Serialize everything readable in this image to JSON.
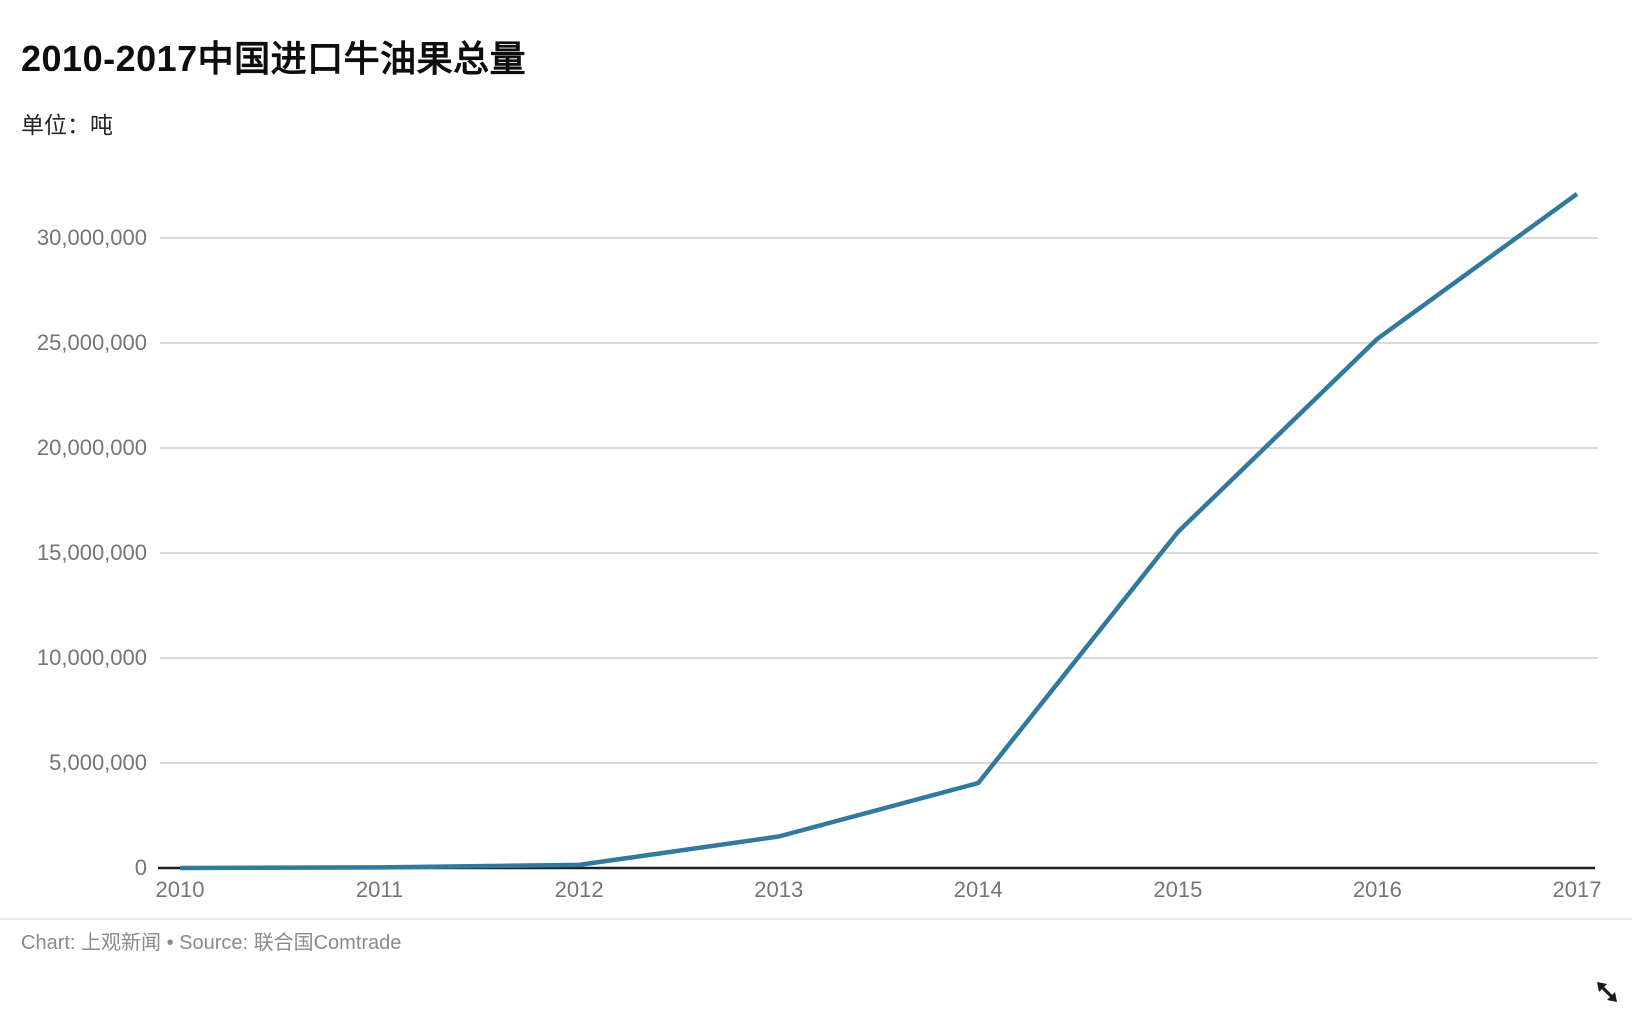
{
  "header": {
    "title": "2010-2017中国进口牛油果总量",
    "subtitle": "单位：吨"
  },
  "footer": {
    "text": "Chart: 上观新闻 • Source: 联合国Comtrade"
  },
  "colors": {
    "line": "#32799f",
    "grid": "#dadada",
    "axis": "#1f1f1f",
    "tick_text": "#757575",
    "footer_text": "#8a8a8a",
    "divider": "#e9e9e9",
    "cursor": "#1a1a1a"
  },
  "chart_data": {
    "type": "line",
    "title": "2010-2017中国进口牛油果总量",
    "unit_label": "单位：吨",
    "source_label": "Chart: 上观新闻 • Source: 联合国Comtrade",
    "categories": [
      2010,
      2011,
      2012,
      2013,
      2014,
      2015,
      2016,
      2017
    ],
    "series": [
      {
        "name": "中国进口牛油果总量",
        "values": [
          0,
          30000,
          150000,
          1500000,
          4050000,
          16000000,
          25200000,
          32100000
        ]
      }
    ],
    "yticks": [
      0,
      5000000,
      10000000,
      15000000,
      20000000,
      25000000,
      30000000
    ],
    "ylim": [
      0,
      32500000
    ],
    "xlabel": "",
    "ylabel": "",
    "grid": "horizontal",
    "legend": "none",
    "tick_number_format": "thousands-comma"
  }
}
